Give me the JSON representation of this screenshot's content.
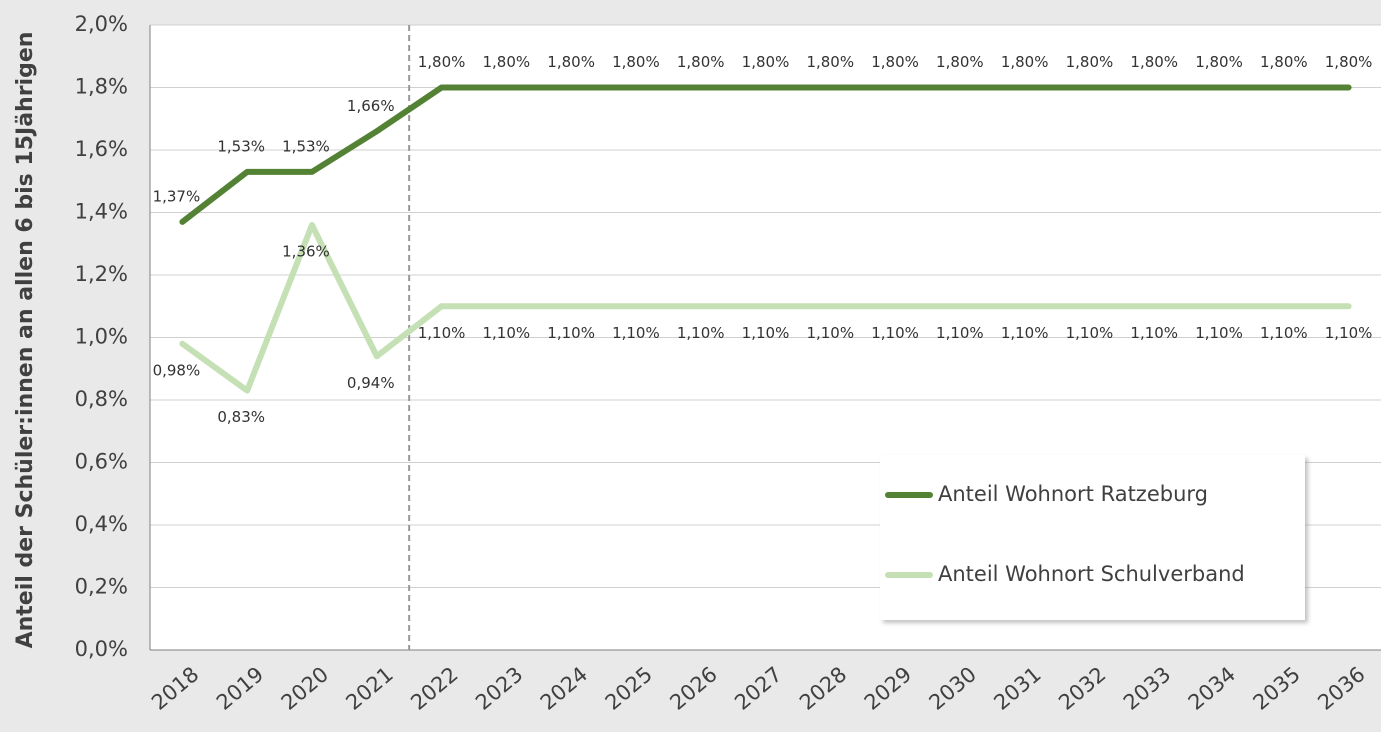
{
  "chart_data": {
    "type": "line",
    "y_label": "Anteil der Schüler:innen an allen 6 bis 15Jährigen",
    "categories": [
      "2018",
      "2019",
      "2020",
      "2021",
      "2022",
      "2023",
      "2024",
      "2025",
      "2026",
      "2027",
      "2028",
      "2029",
      "2030",
      "2031",
      "2032",
      "2033",
      "2034",
      "2035",
      "2036"
    ],
    "series": [
      {
        "name": "Anteil Wohnort Ratzeburg",
        "color": "#548235",
        "values": [
          1.37,
          1.53,
          1.53,
          1.66,
          1.8,
          1.8,
          1.8,
          1.8,
          1.8,
          1.8,
          1.8,
          1.8,
          1.8,
          1.8,
          1.8,
          1.8,
          1.8,
          1.8,
          1.8
        ],
        "value_labels": [
          "1,37%",
          "1,53%",
          "1,53%",
          "1,66%",
          "1,80%",
          "1,80%",
          "1,80%",
          "1,80%",
          "1,80%",
          "1,80%",
          "1,80%",
          "1,80%",
          "1,80%",
          "1,80%",
          "1,80%",
          "1,80%",
          "1,80%",
          "1,80%",
          "1,80%"
        ]
      },
      {
        "name": "Anteil Wohnort Schulverband",
        "color": "#c5e0b4",
        "values": [
          0.98,
          0.83,
          1.36,
          0.94,
          1.1,
          1.1,
          1.1,
          1.1,
          1.1,
          1.1,
          1.1,
          1.1,
          1.1,
          1.1,
          1.1,
          1.1,
          1.1,
          1.1,
          1.1
        ],
        "value_labels": [
          "0,98%",
          "0,83%",
          "1,36%",
          "0,94%",
          "1,10%",
          "1,10%",
          "1,10%",
          "1,10%",
          "1,10%",
          "1,10%",
          "1,10%",
          "1,10%",
          "1,10%",
          "1,10%",
          "1,10%",
          "1,10%",
          "1,10%",
          "1,10%",
          "1,10%"
        ]
      }
    ],
    "ylim": [
      0,
      2
    ],
    "yticks": [
      {
        "value": 0,
        "label": "0,0%"
      },
      {
        "value": 0.2,
        "label": "0,2%"
      },
      {
        "value": 0.4,
        "label": "0,4%"
      },
      {
        "value": 0.6,
        "label": "0,6%"
      },
      {
        "value": 0.8,
        "label": "0,8%"
      },
      {
        "value": 1,
        "label": "1,0%"
      },
      {
        "value": 1.2,
        "label": "1,2%"
      },
      {
        "value": 1.4,
        "label": "1,4%"
      },
      {
        "value": 1.6,
        "label": "1,6%"
      },
      {
        "value": 1.8,
        "label": "1,8%"
      },
      {
        "value": 2,
        "label": "2,0%"
      }
    ],
    "grid": true,
    "legend": "lower right"
  }
}
